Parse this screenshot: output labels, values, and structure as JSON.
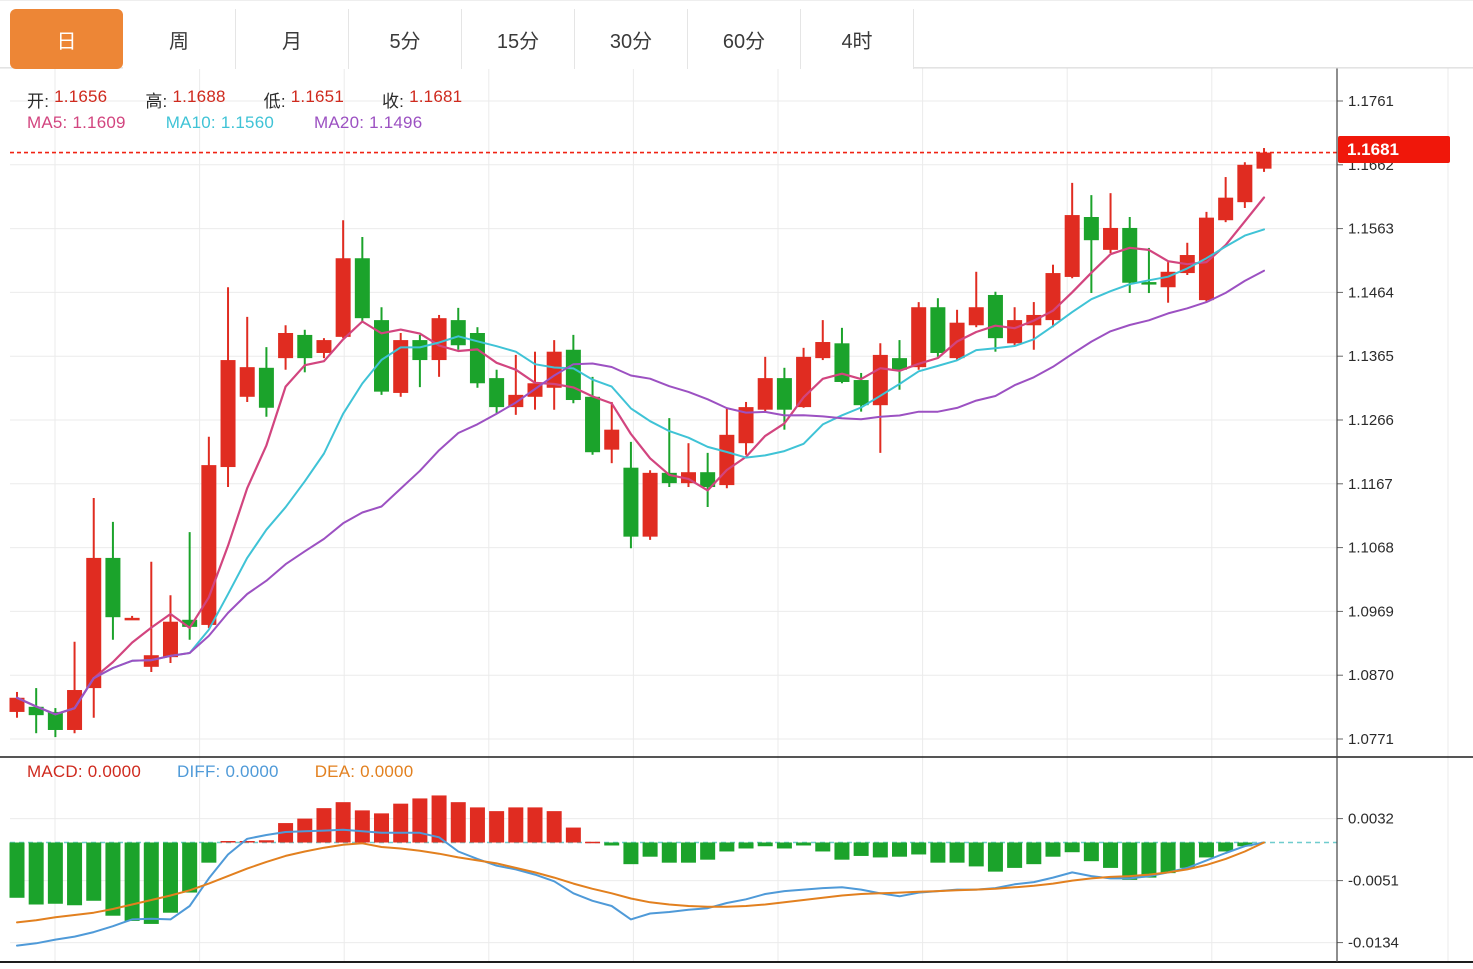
{
  "tabbar": {
    "tabs": [
      {
        "label": "日",
        "active": true
      },
      {
        "label": "周",
        "active": false
      },
      {
        "label": "月",
        "active": false
      },
      {
        "label": "5分",
        "active": false
      },
      {
        "label": "15分",
        "active": false
      },
      {
        "label": "30分",
        "active": false
      },
      {
        "label": "60分",
        "active": false
      },
      {
        "label": "4时",
        "active": false
      }
    ]
  },
  "legend": {
    "ohlc": {
      "open_label": "开:",
      "open": "1.1656",
      "high_label": "高:",
      "high": "1.1688",
      "low_label": "低:",
      "low": "1.1651",
      "close_label": "收:",
      "close": "1.1681"
    },
    "ma": {
      "ma5_label": "MA5:",
      "ma5": "1.1609",
      "ma10_label": "MA10:",
      "ma10": "1.1560",
      "ma20_label": "MA20:",
      "ma20": "1.1496"
    },
    "macd": {
      "macd_label": "MACD:",
      "macd": "0.0000",
      "diff_label": "DIFF:",
      "diff": "0.0000",
      "dea_label": "DEA:",
      "dea": "0.0000"
    }
  },
  "price_axis": {
    "ticks": [
      "1.1761",
      "1.1662",
      "1.1563",
      "1.1464",
      "1.1365",
      "1.1266",
      "1.1167",
      "1.1068",
      "1.0969",
      "1.0870",
      "1.0771"
    ],
    "current_price": "1.1681"
  },
  "macd_axis": {
    "ticks": [
      "0.0032",
      "-0.0051",
      "-0.0134"
    ]
  },
  "colors": {
    "up": "#e02c21",
    "down": "#1ba32b",
    "ma5": "#d2457f",
    "ma10": "#3fc3d6",
    "ma20": "#9c51c2",
    "diff": "#4f9ad8",
    "dea": "#e2801f",
    "active_tab": "#ed8636",
    "value_red": "#cf2a1e",
    "price_flag_bg": "#f0170a",
    "dotted_line": "#f02314",
    "zero_dash": "#6fccce",
    "grid": "#ebebeb",
    "axis_text": "#2b2b2b",
    "panel_border": "#1d1d1d"
  },
  "chart_data": {
    "type": "candlestick",
    "title": "",
    "xlabel": "",
    "ylabel": "",
    "legend_position": "top-left-overlay",
    "grid": true,
    "panels": [
      {
        "name": "price",
        "ylim": [
          1.0743,
          1.1812
        ],
        "yticks": [
          1.1761,
          1.1662,
          1.1563,
          1.1464,
          1.1365,
          1.1266,
          1.1167,
          1.1068,
          1.0969,
          1.087,
          1.0771
        ],
        "current_price": 1.1681,
        "ma_periods": [
          5,
          10,
          20
        ],
        "ohlc": [
          [
            1.0813,
            1.0844,
            1.0804,
            1.0835
          ],
          [
            1.0821,
            1.085,
            1.078,
            1.0808
          ],
          [
            1.0813,
            1.0819,
            1.0774,
            1.0785
          ],
          [
            1.0785,
            1.0922,
            1.078,
            1.0847
          ],
          [
            1.085,
            1.1145,
            1.0804,
            1.1052
          ],
          [
            1.1052,
            1.1108,
            1.0925,
            1.096
          ],
          [
            1.0959,
            1.0962,
            1.0956,
            1.0959
          ],
          [
            1.0883,
            1.1046,
            1.0875,
            1.0901
          ],
          [
            1.0898,
            1.0994,
            1.0889,
            1.0953
          ],
          [
            1.0956,
            1.1092,
            1.0925,
            1.0945
          ],
          [
            1.0948,
            1.124,
            1.0943,
            1.1196
          ],
          [
            1.1193,
            1.1472,
            1.1162,
            1.1359
          ],
          [
            1.1302,
            1.1426,
            1.1294,
            1.1348
          ],
          [
            1.1347,
            1.1379,
            1.1271,
            1.1285
          ],
          [
            1.1362,
            1.1413,
            1.1344,
            1.1401
          ],
          [
            1.1398,
            1.1406,
            1.134,
            1.1362
          ],
          [
            1.137,
            1.1393,
            1.1362,
            1.139
          ],
          [
            1.1395,
            1.1576,
            1.1393,
            1.1517
          ],
          [
            1.1517,
            1.155,
            1.1417,
            1.1424
          ],
          [
            1.1421,
            1.1441,
            1.1305,
            1.131
          ],
          [
            1.1308,
            1.1401,
            1.1302,
            1.139
          ],
          [
            1.139,
            1.1398,
            1.1317,
            1.1359
          ],
          [
            1.1359,
            1.1429,
            1.1333,
            1.1424
          ],
          [
            1.1421,
            1.144,
            1.1375,
            1.1382
          ],
          [
            1.1401,
            1.141,
            1.1316,
            1.1323
          ],
          [
            1.1331,
            1.1344,
            1.1277,
            1.1286
          ],
          [
            1.1286,
            1.1367,
            1.1274,
            1.1305
          ],
          [
            1.1302,
            1.1372,
            1.1282,
            1.1323
          ],
          [
            1.1316,
            1.139,
            1.1282,
            1.1372
          ],
          [
            1.1375,
            1.1398,
            1.1292,
            1.1297
          ],
          [
            1.1302,
            1.1333,
            1.1212,
            1.1216
          ],
          [
            1.122,
            1.1294,
            1.1199,
            1.1251
          ],
          [
            1.1192,
            1.1232,
            1.1067,
            1.1085
          ],
          [
            1.1085,
            1.1188,
            1.108,
            1.1184
          ],
          [
            1.1184,
            1.1269,
            1.1162,
            1.1168
          ],
          [
            1.1168,
            1.123,
            1.1162,
            1.1185
          ],
          [
            1.1185,
            1.1215,
            1.1131,
            1.1162
          ],
          [
            1.1165,
            1.1285,
            1.116,
            1.1243
          ],
          [
            1.123,
            1.1294,
            1.1212,
            1.1286
          ],
          [
            1.1282,
            1.1364,
            1.1278,
            1.1331
          ],
          [
            1.1331,
            1.1347,
            1.1251,
            1.1282
          ],
          [
            1.1286,
            1.1378,
            1.1285,
            1.1364
          ],
          [
            1.1362,
            1.1421,
            1.1359,
            1.1387
          ],
          [
            1.1385,
            1.1409,
            1.1323,
            1.1325
          ],
          [
            1.1328,
            1.1339,
            1.1279,
            1.1289
          ],
          [
            1.1289,
            1.1385,
            1.1215,
            1.1367
          ],
          [
            1.1362,
            1.139,
            1.1313,
            1.1344
          ],
          [
            1.1348,
            1.1449,
            1.1344,
            1.1441
          ],
          [
            1.1441,
            1.1455,
            1.1364,
            1.137
          ],
          [
            1.1362,
            1.1437,
            1.1359,
            1.1417
          ],
          [
            1.1413,
            1.1496,
            1.141,
            1.1441
          ],
          [
            1.146,
            1.1465,
            1.1372,
            1.1393
          ],
          [
            1.1385,
            1.1441,
            1.1382,
            1.1421
          ],
          [
            1.1413,
            1.1449,
            1.1375,
            1.1429
          ],
          [
            1.1421,
            1.1507,
            1.141,
            1.1494
          ],
          [
            1.1488,
            1.1634,
            1.1486,
            1.1584
          ],
          [
            1.1581,
            1.1615,
            1.1463,
            1.1545
          ],
          [
            1.153,
            1.1618,
            1.1525,
            1.1564
          ],
          [
            1.1564,
            1.1581,
            1.1463,
            1.1479
          ],
          [
            1.148,
            1.1533,
            1.1463,
            1.1478
          ],
          [
            1.1472,
            1.1511,
            1.1448,
            1.1496
          ],
          [
            1.1494,
            1.1541,
            1.1491,
            1.1522
          ],
          [
            1.1452,
            1.1589,
            1.1449,
            1.158
          ],
          [
            1.1576,
            1.1643,
            1.1573,
            1.1611
          ],
          [
            1.1604,
            1.1666,
            1.1595,
            1.1662
          ],
          [
            1.1656,
            1.1688,
            1.1651,
            1.1681
          ]
        ]
      },
      {
        "name": "macd",
        "ylim": [
          -0.016,
          0.0114
        ],
        "yticks": [
          0.0032,
          -0.0051,
          -0.0134
        ],
        "hist": [
          -0.0074,
          -0.0083,
          -0.0082,
          -0.0084,
          -0.0078,
          -0.0098,
          -0.0105,
          -0.0109,
          -0.0094,
          -0.0067,
          -0.0027,
          0.0002,
          0.0002,
          0.0003,
          0.0026,
          0.0032,
          0.0046,
          0.0054,
          0.0043,
          0.0039,
          0.0052,
          0.0059,
          0.0063,
          0.0054,
          0.0047,
          0.0042,
          0.0047,
          0.0047,
          0.0042,
          0.002,
          0.0001,
          -0.0004,
          -0.0029,
          -0.0019,
          -0.0027,
          -0.0027,
          -0.0023,
          -0.0012,
          -0.0008,
          -0.0005,
          -0.0008,
          -0.0004,
          -0.0012,
          -0.0023,
          -0.0018,
          -0.002,
          -0.0019,
          -0.0016,
          -0.0027,
          -0.0027,
          -0.0032,
          -0.0039,
          -0.0034,
          -0.0029,
          -0.0019,
          -0.0013,
          -0.0025,
          -0.0034,
          -0.005,
          -0.0047,
          -0.0041,
          -0.0034,
          -0.002,
          -0.0012,
          -0.0005,
          0.0
        ],
        "diff": [
          -0.0138,
          -0.0135,
          -0.013,
          -0.0126,
          -0.012,
          -0.0112,
          -0.0103,
          -0.0102,
          -0.0103,
          -0.0085,
          -0.0048,
          -0.0016,
          0.0005,
          0.001,
          0.0014,
          0.0015,
          0.0016,
          0.0017,
          0.0015,
          0.0013,
          0.0013,
          0.0013,
          0.0007,
          -0.0012,
          -0.0022,
          -0.0031,
          -0.0036,
          -0.0043,
          -0.0052,
          -0.0068,
          -0.0078,
          -0.0085,
          -0.0103,
          -0.0095,
          -0.0093,
          -0.009,
          -0.0088,
          -0.0081,
          -0.0076,
          -0.0069,
          -0.0065,
          -0.0063,
          -0.0061,
          -0.006,
          -0.0063,
          -0.0068,
          -0.0072,
          -0.0067,
          -0.0065,
          -0.0063,
          -0.0063,
          -0.0061,
          -0.0056,
          -0.0053,
          -0.0047,
          -0.004,
          -0.0045,
          -0.0048,
          -0.0048,
          -0.0045,
          -0.004,
          -0.0034,
          -0.0024,
          -0.0014,
          -0.0005,
          0.0
        ],
        "dea": [
          -0.0107,
          -0.0104,
          -0.01,
          -0.0097,
          -0.0094,
          -0.0089,
          -0.0083,
          -0.0077,
          -0.0071,
          -0.0064,
          -0.0055,
          -0.0045,
          -0.0035,
          -0.0026,
          -0.0018,
          -0.0012,
          -0.0007,
          -0.0003,
          -0.0001,
          -0.0006,
          -0.0008,
          -0.0011,
          -0.0015,
          -0.002,
          -0.0024,
          -0.0028,
          -0.0034,
          -0.004,
          -0.0047,
          -0.0055,
          -0.0062,
          -0.0068,
          -0.0075,
          -0.008,
          -0.0083,
          -0.0085,
          -0.0086,
          -0.0086,
          -0.0085,
          -0.0083,
          -0.008,
          -0.0077,
          -0.0074,
          -0.0071,
          -0.0069,
          -0.0068,
          -0.0067,
          -0.0066,
          -0.0065,
          -0.0064,
          -0.0063,
          -0.0062,
          -0.006,
          -0.0058,
          -0.0055,
          -0.0051,
          -0.0048,
          -0.0046,
          -0.0045,
          -0.0043,
          -0.004,
          -0.0036,
          -0.003,
          -0.0022,
          -0.0012,
          0.0
        ]
      }
    ]
  }
}
